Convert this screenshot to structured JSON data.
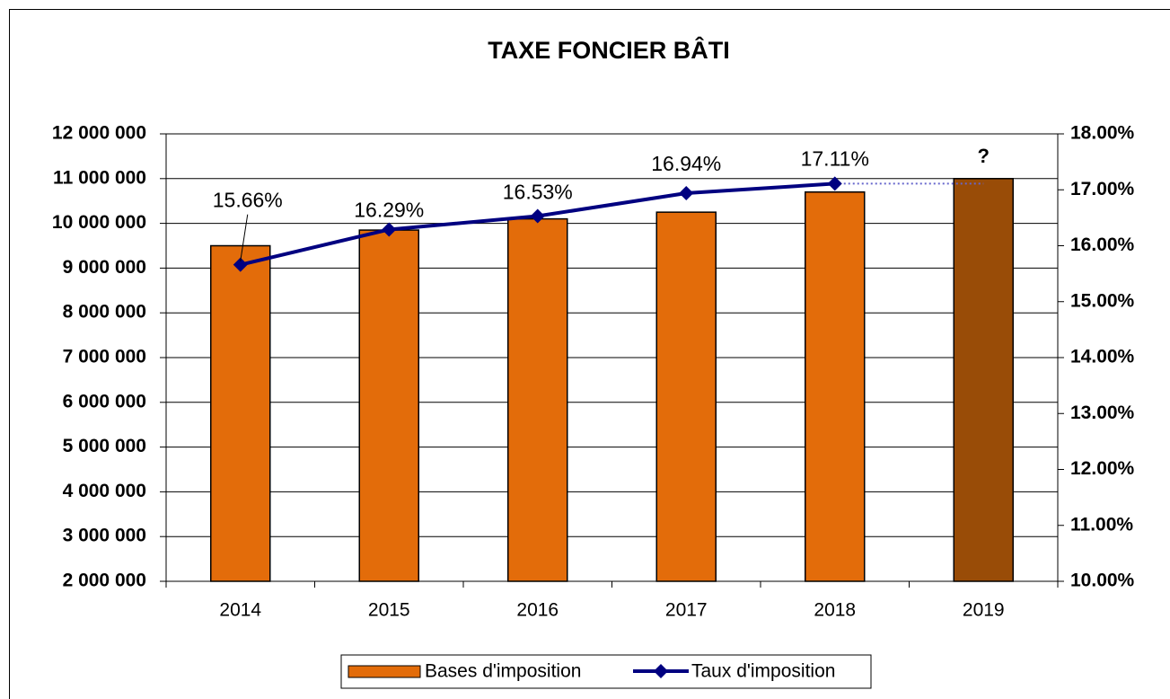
{
  "chart_data": {
    "type": "bar_line",
    "title": "TAXE FONCIER BÂTI",
    "categories": [
      "2014",
      "2015",
      "2016",
      "2017",
      "2018",
      "2019"
    ],
    "series": [
      {
        "name": "Bases d'imposition",
        "type": "bar",
        "color": "#E36C0A",
        "colors": [
          "#E36C0A",
          "#E36C0A",
          "#E36C0A",
          "#E36C0A",
          "#E36C0A",
          "#994C07"
        ],
        "values": [
          9500000,
          9850000,
          10100000,
          10250000,
          10700000,
          11000000
        ]
      },
      {
        "name": "Taux d'imposition",
        "type": "line",
        "axis": "y2",
        "color": "#000080",
        "values": [
          15.66,
          16.29,
          16.53,
          16.94,
          17.11,
          null
        ],
        "value_labels": [
          "15.66%",
          "16.29%",
          "16.53%",
          "16.94%",
          "17.11%",
          null
        ]
      }
    ],
    "annotations": [
      {
        "text": "?",
        "category": 5
      }
    ],
    "ylim": [
      2000000,
      12000000
    ],
    "yticks": [
      {
        "value": 2000000,
        "label": "2 000 000"
      },
      {
        "value": 3000000,
        "label": "3 000 000"
      },
      {
        "value": 4000000,
        "label": "4 000 000"
      },
      {
        "value": 5000000,
        "label": "5 000 000"
      },
      {
        "value": 6000000,
        "label": "6 000 000"
      },
      {
        "value": 7000000,
        "label": "7 000 000"
      },
      {
        "value": 8000000,
        "label": "8 000 000"
      },
      {
        "value": 9000000,
        "label": "9 000 000"
      },
      {
        "value": 10000000,
        "label": "10 000 000"
      },
      {
        "value": 11000000,
        "label": "11 000 000"
      },
      {
        "value": 12000000,
        "label": "12 000 000"
      }
    ],
    "y2lim": [
      10,
      18
    ],
    "y2ticks": [
      {
        "value": 10,
        "label": "10.00%"
      },
      {
        "value": 11,
        "label": "11.00%"
      },
      {
        "value": 12,
        "label": "12.00%"
      },
      {
        "value": 13,
        "label": "13.00%"
      },
      {
        "value": 14,
        "label": "14.00%"
      },
      {
        "value": 15,
        "label": "15.00%"
      },
      {
        "value": 16,
        "label": "16.00%"
      },
      {
        "value": 17,
        "label": "17.00%"
      },
      {
        "value": 18,
        "label": "18.00%"
      }
    ],
    "y_tick_color": "#E36C0A",
    "y2_tick_color": "#333399",
    "grid": true,
    "legend": "bottom"
  }
}
